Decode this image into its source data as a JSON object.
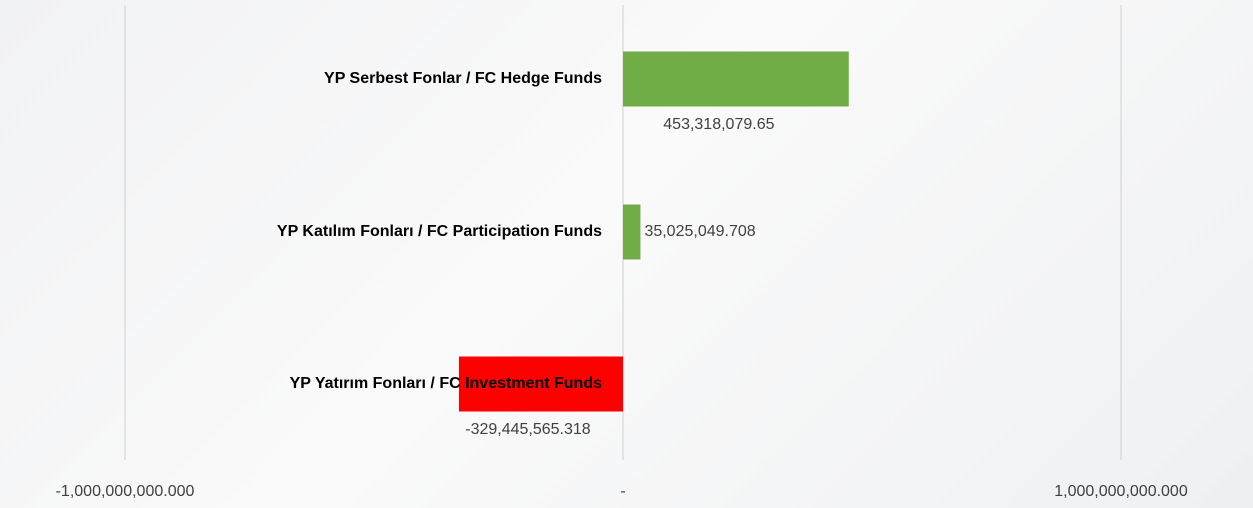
{
  "chart_data": {
    "type": "hbar",
    "categories": [
      "YP Serbest Fonlar / FC Hedge Funds",
      "YP Katılım Fonları / FC Participation Funds",
      "YP Yatırım Fonları / FC Investment Funds"
    ],
    "values": [
      453318079.65,
      35025049.708,
      -329445565.318
    ],
    "value_labels": [
      "453,318,079.65",
      "35,025,049.708",
      "-329,445,565.318"
    ],
    "colors": [
      "#70ad47",
      "#70ad47",
      "#ff0000"
    ],
    "xlim": [
      -1000000000,
      1000000000
    ],
    "xticks": [
      {
        "value": -1000000000,
        "label": "-1,000,000,000.000"
      },
      {
        "value": 0,
        "label": "-"
      },
      {
        "value": 1000000000,
        "label": "1,000,000,000.000"
      }
    ],
    "grid": true
  }
}
